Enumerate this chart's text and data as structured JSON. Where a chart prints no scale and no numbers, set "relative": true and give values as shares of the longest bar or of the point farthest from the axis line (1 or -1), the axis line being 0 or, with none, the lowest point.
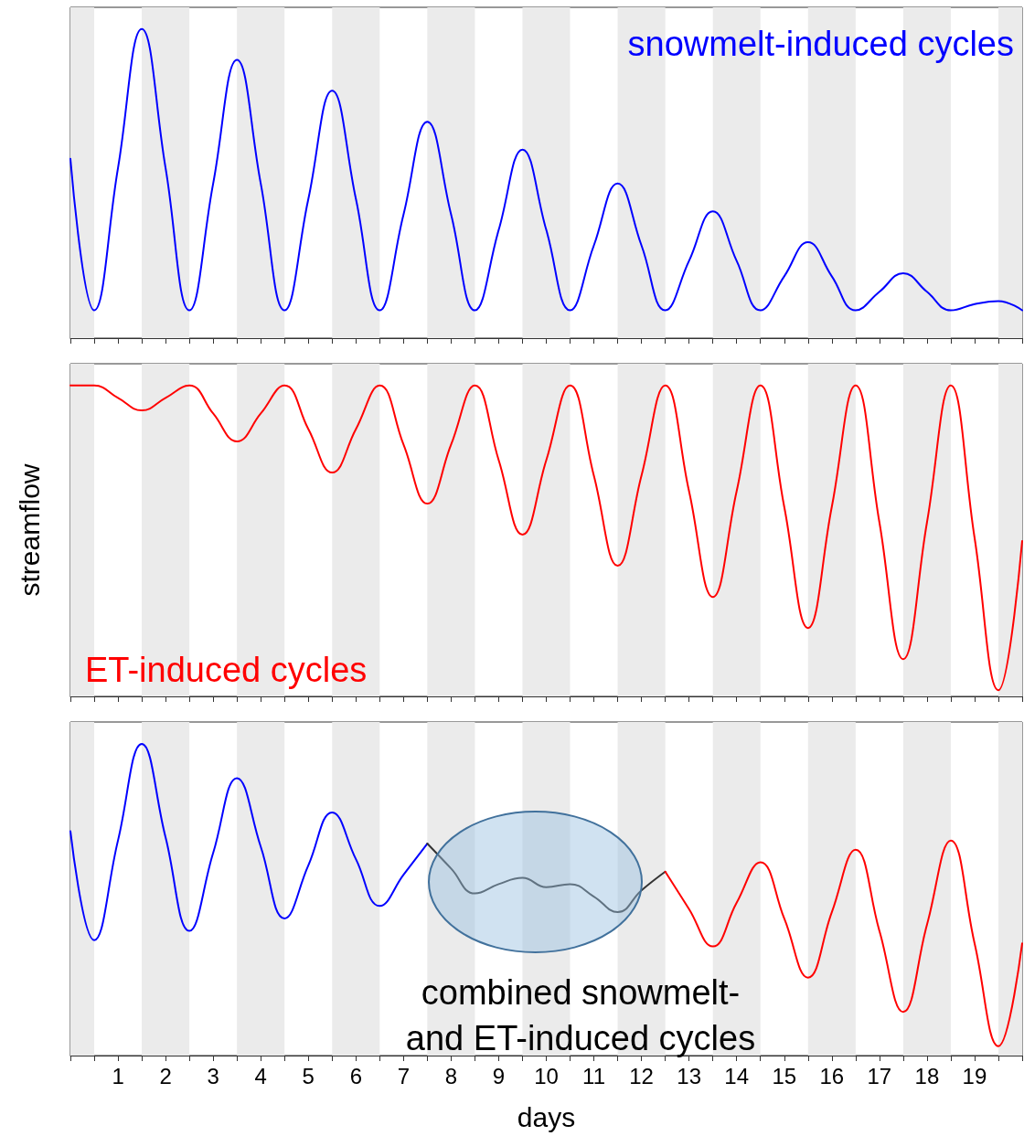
{
  "chart_data": [
    {
      "type": "line",
      "title": "snowmelt-induced cycles",
      "relative": true,
      "tick_labels": false,
      "xlim": [
        0,
        20
      ],
      "xticks": [
        {
          "value": 0,
          "label": null
        },
        {
          "value": 0.5,
          "label": null
        },
        1,
        {
          "value": 1.5,
          "label": null
        },
        2,
        {
          "value": 2.5,
          "label": null
        },
        3,
        {
          "value": 3.5,
          "label": null
        },
        4,
        {
          "value": 4.5,
          "label": null
        },
        5,
        {
          "value": 5.5,
          "label": null
        },
        6,
        {
          "value": 6.5,
          "label": null
        },
        7,
        {
          "value": 7.5,
          "label": null
        },
        8,
        {
          "value": 8.5,
          "label": null
        },
        9,
        {
          "value": 9.5,
          "label": null
        },
        10,
        {
          "value": 10.5,
          "label": null
        },
        11,
        {
          "value": 11.5,
          "label": null
        },
        12,
        {
          "value": 12.5,
          "label": null
        },
        13,
        {
          "value": 13.5,
          "label": null
        },
        14,
        {
          "value": 14.5,
          "label": null
        },
        15,
        {
          "value": 15.5,
          "label": null
        },
        16,
        {
          "value": 16.5,
          "label": null
        },
        17,
        {
          "value": 17.5,
          "label": null
        },
        18,
        {
          "value": 18.5,
          "label": null
        },
        19,
        {
          "value": 19.5,
          "label": null
        },
        {
          "value": 20,
          "label": null
        }
      ],
      "bands": [
        {
          "axis": "x",
          "from": 0,
          "to": 0.5,
          "color": "#ebebeb"
        },
        {
          "axis": "x",
          "from": 1.5,
          "to": 2.5,
          "color": "#ebebeb"
        },
        {
          "axis": "x",
          "from": 3.5,
          "to": 4.5,
          "color": "#ebebeb"
        },
        {
          "axis": "x",
          "from": 5.5,
          "to": 6.5,
          "color": "#ebebeb"
        },
        {
          "axis": "x",
          "from": 7.5,
          "to": 8.5,
          "color": "#ebebeb"
        },
        {
          "axis": "x",
          "from": 9.5,
          "to": 10.5,
          "color": "#ebebeb"
        },
        {
          "axis": "x",
          "from": 11.5,
          "to": 12.5,
          "color": "#ebebeb"
        },
        {
          "axis": "x",
          "from": 13.5,
          "to": 14.5,
          "color": "#ebebeb"
        },
        {
          "axis": "x",
          "from": 15.5,
          "to": 16.5,
          "color": "#ebebeb"
        },
        {
          "axis": "x",
          "from": 17.5,
          "to": 18.5,
          "color": "#ebebeb"
        },
        {
          "axis": "x",
          "from": 19.5,
          "to": 20,
          "color": "#ebebeb"
        }
      ],
      "series": [
        {
          "color": "#0000ff",
          "x": [
            0,
            0.5,
            1,
            1.5,
            2,
            2.5,
            3,
            3.5,
            4,
            4.5,
            5,
            5.5,
            6,
            6.5,
            7,
            7.5,
            8,
            8.5,
            9,
            9.5,
            10,
            10.5,
            11,
            11.5,
            12,
            12.5,
            13,
            13.5,
            14,
            14.5,
            15,
            15.5,
            16,
            16.5,
            17,
            17.5,
            18,
            18.5,
            19,
            19.5,
            20
          ],
          "values": [
            0.58,
            0.09,
            0.55,
            1.0,
            0.55,
            0.09,
            0.5,
            0.9,
            0.5,
            0.09,
            0.45,
            0.8,
            0.45,
            0.09,
            0.4,
            0.7,
            0.4,
            0.09,
            0.35,
            0.61,
            0.35,
            0.09,
            0.3,
            0.5,
            0.3,
            0.09,
            0.25,
            0.41,
            0.25,
            0.09,
            0.2,
            0.31,
            0.2,
            0.09,
            0.15,
            0.21,
            0.15,
            0.09,
            0.11,
            0.12,
            0.09
          ]
        }
      ]
    },
    {
      "type": "line",
      "title": "ET-induced cycles",
      "ylabel": "streamflow",
      "relative": true,
      "tick_labels": false,
      "xlim": [
        0,
        20
      ],
      "xticks": [
        {
          "value": 0,
          "label": null
        },
        {
          "value": 0.5,
          "label": null
        },
        1,
        {
          "value": 1.5,
          "label": null
        },
        2,
        {
          "value": 2.5,
          "label": null
        },
        3,
        {
          "value": 3.5,
          "label": null
        },
        4,
        {
          "value": 4.5,
          "label": null
        },
        5,
        {
          "value": 5.5,
          "label": null
        },
        6,
        {
          "value": 6.5,
          "label": null
        },
        7,
        {
          "value": 7.5,
          "label": null
        },
        8,
        {
          "value": 8.5,
          "label": null
        },
        9,
        {
          "value": 9.5,
          "label": null
        },
        10,
        {
          "value": 10.5,
          "label": null
        },
        11,
        {
          "value": 11.5,
          "label": null
        },
        12,
        {
          "value": 12.5,
          "label": null
        },
        13,
        {
          "value": 13.5,
          "label": null
        },
        14,
        {
          "value": 14.5,
          "label": null
        },
        15,
        {
          "value": 15.5,
          "label": null
        },
        16,
        {
          "value": 16.5,
          "label": null
        },
        17,
        {
          "value": 17.5,
          "label": null
        },
        18,
        {
          "value": 18.5,
          "label": null
        },
        19,
        {
          "value": 19.5,
          "label": null
        },
        {
          "value": 20,
          "label": null
        }
      ],
      "bands": [
        {
          "axis": "x",
          "from": 0,
          "to": 0.5,
          "color": "#ebebeb"
        },
        {
          "axis": "x",
          "from": 1.5,
          "to": 2.5,
          "color": "#ebebeb"
        },
        {
          "axis": "x",
          "from": 3.5,
          "to": 4.5,
          "color": "#ebebeb"
        },
        {
          "axis": "x",
          "from": 5.5,
          "to": 6.5,
          "color": "#ebebeb"
        },
        {
          "axis": "x",
          "from": 7.5,
          "to": 8.5,
          "color": "#ebebeb"
        },
        {
          "axis": "x",
          "from": 9.5,
          "to": 10.5,
          "color": "#ebebeb"
        },
        {
          "axis": "x",
          "from": 11.5,
          "to": 12.5,
          "color": "#ebebeb"
        },
        {
          "axis": "x",
          "from": 13.5,
          "to": 14.5,
          "color": "#ebebeb"
        },
        {
          "axis": "x",
          "from": 15.5,
          "to": 16.5,
          "color": "#ebebeb"
        },
        {
          "axis": "x",
          "from": 17.5,
          "to": 18.5,
          "color": "#ebebeb"
        },
        {
          "axis": "x",
          "from": 19.5,
          "to": 20,
          "color": "#ebebeb"
        }
      ],
      "series": [
        {
          "color": "#ff0000",
          "x": [
            0,
            0.5,
            1,
            1.5,
            2,
            2.5,
            3,
            3.5,
            4,
            4.5,
            5,
            5.5,
            6,
            6.5,
            7,
            7.5,
            8,
            8.5,
            9,
            9.5,
            10,
            10.5,
            11,
            11.5,
            12,
            12.5,
            13,
            13.5,
            14,
            14.5,
            15,
            15.5,
            16,
            16.5,
            17,
            17.5,
            18,
            18.5,
            19,
            19.5,
            20
          ],
          "values": [
            1.0,
            1.0,
            0.96,
            0.92,
            0.96,
            1.0,
            0.91,
            0.82,
            0.91,
            1.0,
            0.86,
            0.72,
            0.86,
            1.0,
            0.81,
            0.62,
            0.81,
            1.0,
            0.76,
            0.52,
            0.76,
            1.0,
            0.71,
            0.42,
            0.71,
            1.0,
            0.66,
            0.32,
            0.66,
            1.0,
            0.61,
            0.22,
            0.61,
            1.0,
            0.56,
            0.12,
            0.56,
            1.0,
            0.51,
            0.02,
            0.5
          ]
        }
      ]
    },
    {
      "type": "line",
      "title": "combined snowmelt- and ET-induced cycles",
      "xlabel": "days",
      "relative": true,
      "tick_labels": "x",
      "xlim": [
        0,
        20
      ],
      "xticks": [
        {
          "value": 0,
          "label": null
        },
        {
          "value": 0.5,
          "label": null
        },
        1,
        {
          "value": 1.5,
          "label": null
        },
        2,
        {
          "value": 2.5,
          "label": null
        },
        3,
        {
          "value": 3.5,
          "label": null
        },
        4,
        {
          "value": 4.5,
          "label": null
        },
        5,
        {
          "value": 5.5,
          "label": null
        },
        6,
        {
          "value": 6.5,
          "label": null
        },
        7,
        {
          "value": 7.5,
          "label": null
        },
        8,
        {
          "value": 8.5,
          "label": null
        },
        9,
        {
          "value": 9.5,
          "label": null
        },
        10,
        {
          "value": 10.5,
          "label": null
        },
        11,
        {
          "value": 11.5,
          "label": null
        },
        12,
        {
          "value": 12.5,
          "label": null
        },
        13,
        {
          "value": 13.5,
          "label": null
        },
        14,
        {
          "value": 14.5,
          "label": null
        },
        15,
        {
          "value": 15.5,
          "label": null
        },
        16,
        {
          "value": 16.5,
          "label": null
        },
        17,
        {
          "value": 17.5,
          "label": null
        },
        18,
        {
          "value": 18.5,
          "label": null
        },
        19,
        {
          "value": 19.5,
          "label": null
        },
        {
          "value": 20,
          "label": null
        }
      ],
      "bands": [
        {
          "axis": "x",
          "from": 0,
          "to": 0.5,
          "color": "#ebebeb"
        },
        {
          "axis": "x",
          "from": 1.5,
          "to": 2.5,
          "color": "#ebebeb"
        },
        {
          "axis": "x",
          "from": 3.5,
          "to": 4.5,
          "color": "#ebebeb"
        },
        {
          "axis": "x",
          "from": 5.5,
          "to": 6.5,
          "color": "#ebebeb"
        },
        {
          "axis": "x",
          "from": 7.5,
          "to": 8.5,
          "color": "#ebebeb"
        },
        {
          "axis": "x",
          "from": 9.5,
          "to": 10.5,
          "color": "#ebebeb"
        },
        {
          "axis": "x",
          "from": 11.5,
          "to": 12.5,
          "color": "#ebebeb"
        },
        {
          "axis": "x",
          "from": 13.5,
          "to": 14.5,
          "color": "#ebebeb"
        },
        {
          "axis": "x",
          "from": 15.5,
          "to": 16.5,
          "color": "#ebebeb"
        },
        {
          "axis": "x",
          "from": 17.5,
          "to": 18.5,
          "color": "#ebebeb"
        },
        {
          "axis": "x",
          "from": 19.5,
          "to": 20,
          "color": "#ebebeb"
        }
      ],
      "series": [
        {
          "color": "#0000ff",
          "x": [
            0,
            0.5,
            1,
            1.5,
            2,
            2.5,
            3,
            3.5,
            4,
            4.5,
            5,
            5.5,
            6,
            6.5,
            7,
            7.5
          ],
          "values": [
            0.72,
            0.37,
            0.69,
            1.0,
            0.7,
            0.4,
            0.65,
            0.89,
            0.67,
            0.44,
            0.61,
            0.78,
            0.63,
            0.48,
            0.58,
            0.68
          ]
        },
        {
          "color": "#333333",
          "x": [
            7.5,
            8,
            8.5,
            9,
            9.5,
            10,
            10.5,
            11,
            11.5,
            12,
            12.5
          ],
          "values": [
            0.68,
            0.6,
            0.52,
            0.55,
            0.57,
            0.54,
            0.55,
            0.51,
            0.46,
            0.53,
            0.59
          ]
        },
        {
          "color": "#ff0000",
          "x": [
            12.5,
            13,
            13.5,
            14,
            14.5,
            15,
            15.5,
            16,
            16.5,
            17,
            17.5,
            18,
            18.5,
            19,
            19.5,
            20
          ],
          "values": [
            0.59,
            0.47,
            0.35,
            0.49,
            0.62,
            0.44,
            0.25,
            0.46,
            0.66,
            0.4,
            0.14,
            0.42,
            0.69,
            0.36,
            0.03,
            0.36
          ]
        }
      ]
    }
  ]
}
